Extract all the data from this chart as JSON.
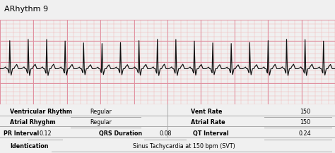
{
  "title": "ARhythm 9",
  "title_fontsize": 8,
  "ecg_bg_color": "#f9d8d8",
  "grid_minor_color": "#f0b0b0",
  "grid_major_color": "#e090a0",
  "ecg_line_color": "#111111",
  "table_bg": "#ebebeb",
  "table_line_color": "#aaaaaa",
  "identification_label": "Identication",
  "identification_value": "Sinus Tachycardia at 150 bpm (SVT)",
  "row1_label1": "Ventricular Rhythm",
  "row1_val1": "Regular",
  "row1_label2": "Vent Rate",
  "row1_val2": "150",
  "row2_label1": "Atrial Rhyghm",
  "row2_val1": "Regular",
  "row2_label2": "Atrial Rate",
  "row2_val2": "150",
  "row3_label1": "PR Interval",
  "row3_val1": "0.12",
  "row3_label2": "QRS Duration",
  "row3_val2": "0.08",
  "row3_label3": "QT Interval",
  "row3_val3": "0.24",
  "fig_width": 4.74,
  "fig_height": 2.17,
  "dpi": 100
}
